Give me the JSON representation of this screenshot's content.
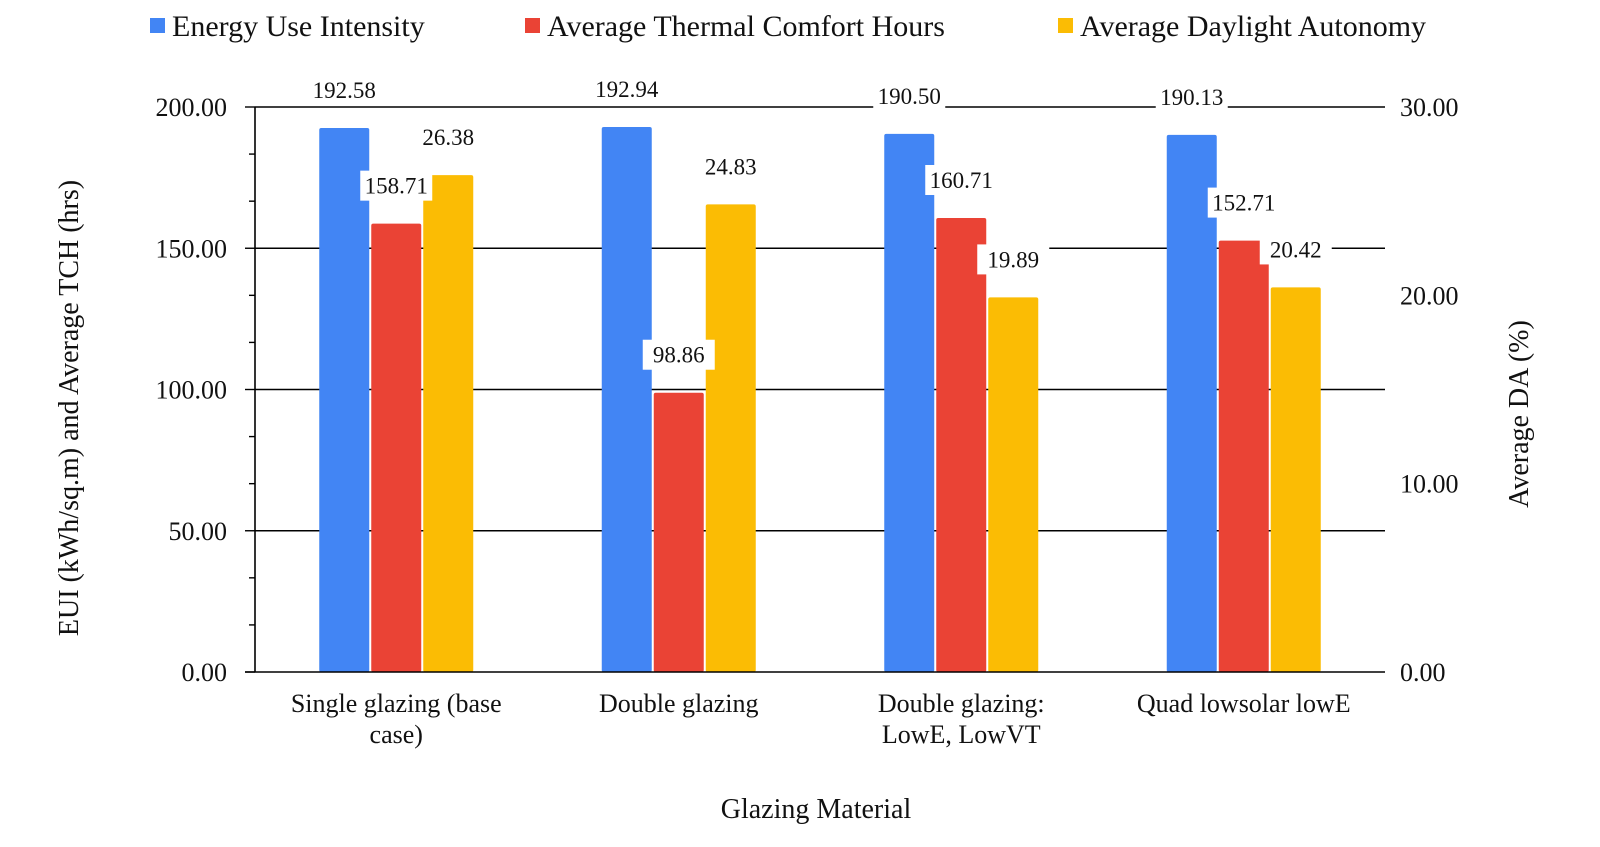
{
  "chart_data": {
    "type": "bar",
    "xlabel": "Glazing Material",
    "ylabel": "EUI (kWh/sq.m) and Average TCH (hrs)",
    "y2label": "Average DA (%)",
    "ylim": [
      0,
      200
    ],
    "y2lim": [
      0,
      30
    ],
    "yticks": [
      "0.00",
      "50.00",
      "100.00",
      "150.00",
      "200.00"
    ],
    "y2ticks": [
      "0.00",
      "10.00",
      "20.00",
      "30.00"
    ],
    "grid": true,
    "legend_position": "top",
    "categories": [
      [
        "Single glazing (base",
        "case)"
      ],
      [
        "Double glazing"
      ],
      [
        "Double glazing:",
        "LowE, LowVT"
      ],
      [
        "Quad lowsolar lowE"
      ]
    ],
    "series": [
      {
        "name": "Energy Use Intensity",
        "axis": "left",
        "color": "#4285F4",
        "values": [
          192.58,
          192.94,
          190.5,
          190.13
        ],
        "labels": [
          "192.58",
          "192.94",
          "190.50",
          "190.13"
        ]
      },
      {
        "name": "Average Thermal Comfort Hours",
        "axis": "left",
        "color": "#EA4335",
        "values": [
          158.71,
          98.86,
          160.71,
          152.71
        ],
        "labels": [
          "158.71",
          "98.86",
          "160.71",
          "152.71"
        ]
      },
      {
        "name": "Average Daylight Autonomy",
        "axis": "right",
        "color": "#FBBC04",
        "values": [
          26.38,
          24.83,
          19.89,
          20.42
        ],
        "labels": [
          "26.38",
          "24.83",
          "19.89",
          "20.42"
        ]
      }
    ]
  }
}
